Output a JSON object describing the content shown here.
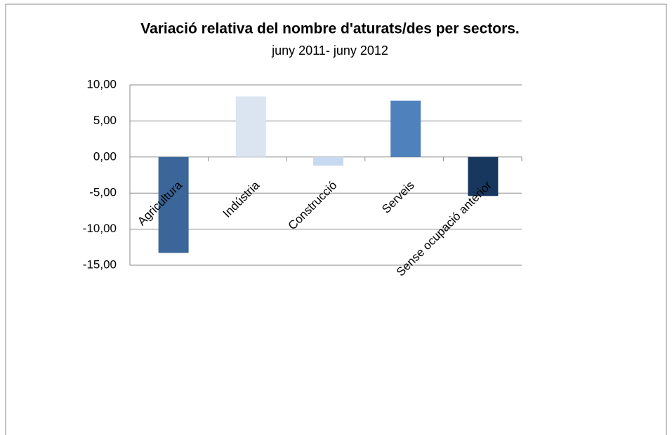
{
  "chart_data": {
    "type": "bar",
    "title": "Variació relativa del nombre d'aturats/des per sectors.",
    "subtitle": "juny 2011- juny 2012",
    "categories": [
      "Agricultura",
      "Indústria",
      "Construcció",
      "Serveis",
      "Sense ocupació anterior"
    ],
    "values": [
      -13.3,
      8.4,
      -1.2,
      7.8,
      -5.4
    ],
    "colors": [
      "#3a6699",
      "#dbe5f1",
      "#c6d9f0",
      "#4f81bd",
      "#17375e"
    ],
    "ylim": [
      -15,
      10
    ],
    "yticks": [
      {
        "value": -15,
        "label": "-15,00"
      },
      {
        "value": -10,
        "label": "-10,00"
      },
      {
        "value": -5,
        "label": "-5,00"
      },
      {
        "value": 0,
        "label": "0,00"
      },
      {
        "value": 5,
        "label": "5,00"
      },
      {
        "value": 10,
        "label": "10,00"
      }
    ],
    "grid": true
  }
}
